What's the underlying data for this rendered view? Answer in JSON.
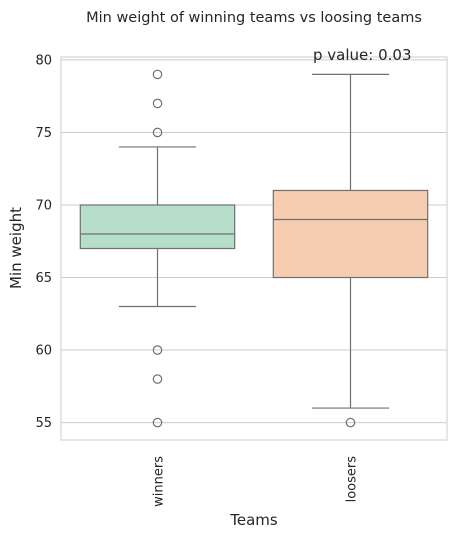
{
  "chart_data": {
    "type": "box",
    "title": "Min weight of winning teams vs loosing teams",
    "xlabel": "Teams",
    "ylabel": "Min weight",
    "categories": [
      "winners",
      "loosers"
    ],
    "ylim": [
      53.8,
      80.2
    ],
    "yticks": [
      55,
      60,
      65,
      70,
      75,
      80
    ],
    "grid": true,
    "annotation": "p value: 0.03",
    "boxes": [
      {
        "name": "winners",
        "color": "#b6dec9",
        "whisker_low": 63,
        "q1": 67,
        "median": 68,
        "q3": 70,
        "whisker_high": 74,
        "outliers": [
          79,
          77,
          75,
          60,
          58,
          55
        ]
      },
      {
        "name": "loosers",
        "color": "#f6cdb0",
        "whisker_low": 56,
        "q1": 65,
        "median": 69,
        "q3": 71,
        "whisker_high": 79,
        "outliers": [
          55
        ]
      }
    ]
  }
}
